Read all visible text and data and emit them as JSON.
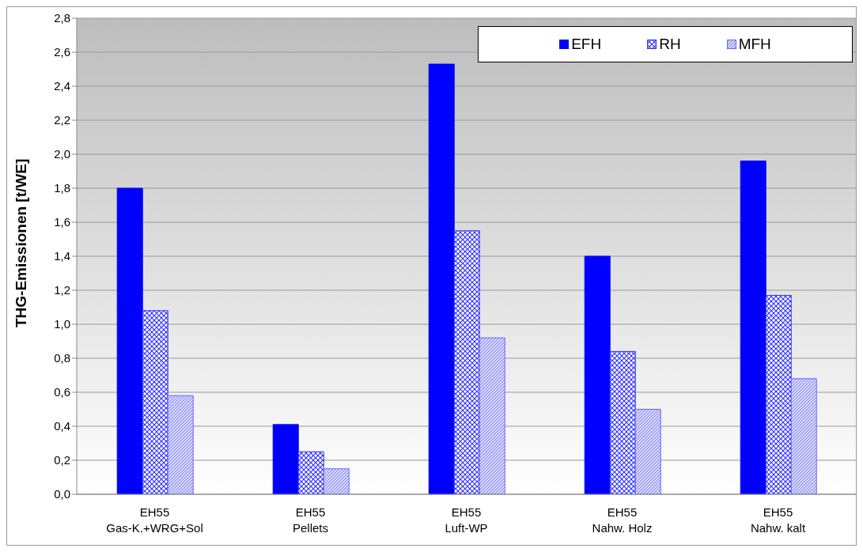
{
  "chart_data": {
    "type": "bar",
    "ylabel": "THG-Emissionen [t/WE]",
    "categories": [
      "EH55\nGas-K.+WRG+Sol",
      "EH55\nPellets",
      "EH55\nLuft-WP",
      "EH55\nNahw. Holz",
      "EH55\nNahw. kalt"
    ],
    "series": [
      {
        "name": "EFH",
        "color": "#0000ff",
        "values": [
          1.8,
          0.41,
          2.53,
          1.4,
          1.96
        ]
      },
      {
        "name": "RH",
        "color": "#3333ff",
        "values": [
          1.08,
          0.25,
          1.55,
          0.84,
          1.17
        ]
      },
      {
        "name": "MFH",
        "color": "#6666ff",
        "values": [
          0.58,
          0.15,
          0.92,
          0.5,
          0.68
        ]
      }
    ],
    "ylim": [
      0,
      2.8
    ],
    "yticks": [
      {
        "value": 0,
        "label": "0,0"
      },
      {
        "value": 0.2,
        "label": "0,2"
      },
      {
        "value": 0.4,
        "label": "0,4"
      },
      {
        "value": 0.6,
        "label": "0,6"
      },
      {
        "value": 0.8,
        "label": "0,8"
      },
      {
        "value": 1.0,
        "label": "1,0"
      },
      {
        "value": 1.2,
        "label": "1,2"
      },
      {
        "value": 1.4,
        "label": "1,4"
      },
      {
        "value": 1.6,
        "label": "1,6"
      },
      {
        "value": 1.8,
        "label": "1,8"
      },
      {
        "value": 2.0,
        "label": "2,0"
      },
      {
        "value": 2.2,
        "label": "2,2"
      },
      {
        "value": 2.4,
        "label": "2,4"
      },
      {
        "value": 2.6,
        "label": "2,6"
      },
      {
        "value": 2.8,
        "label": "2,8"
      }
    ],
    "grid": "y",
    "legend": "top right"
  }
}
